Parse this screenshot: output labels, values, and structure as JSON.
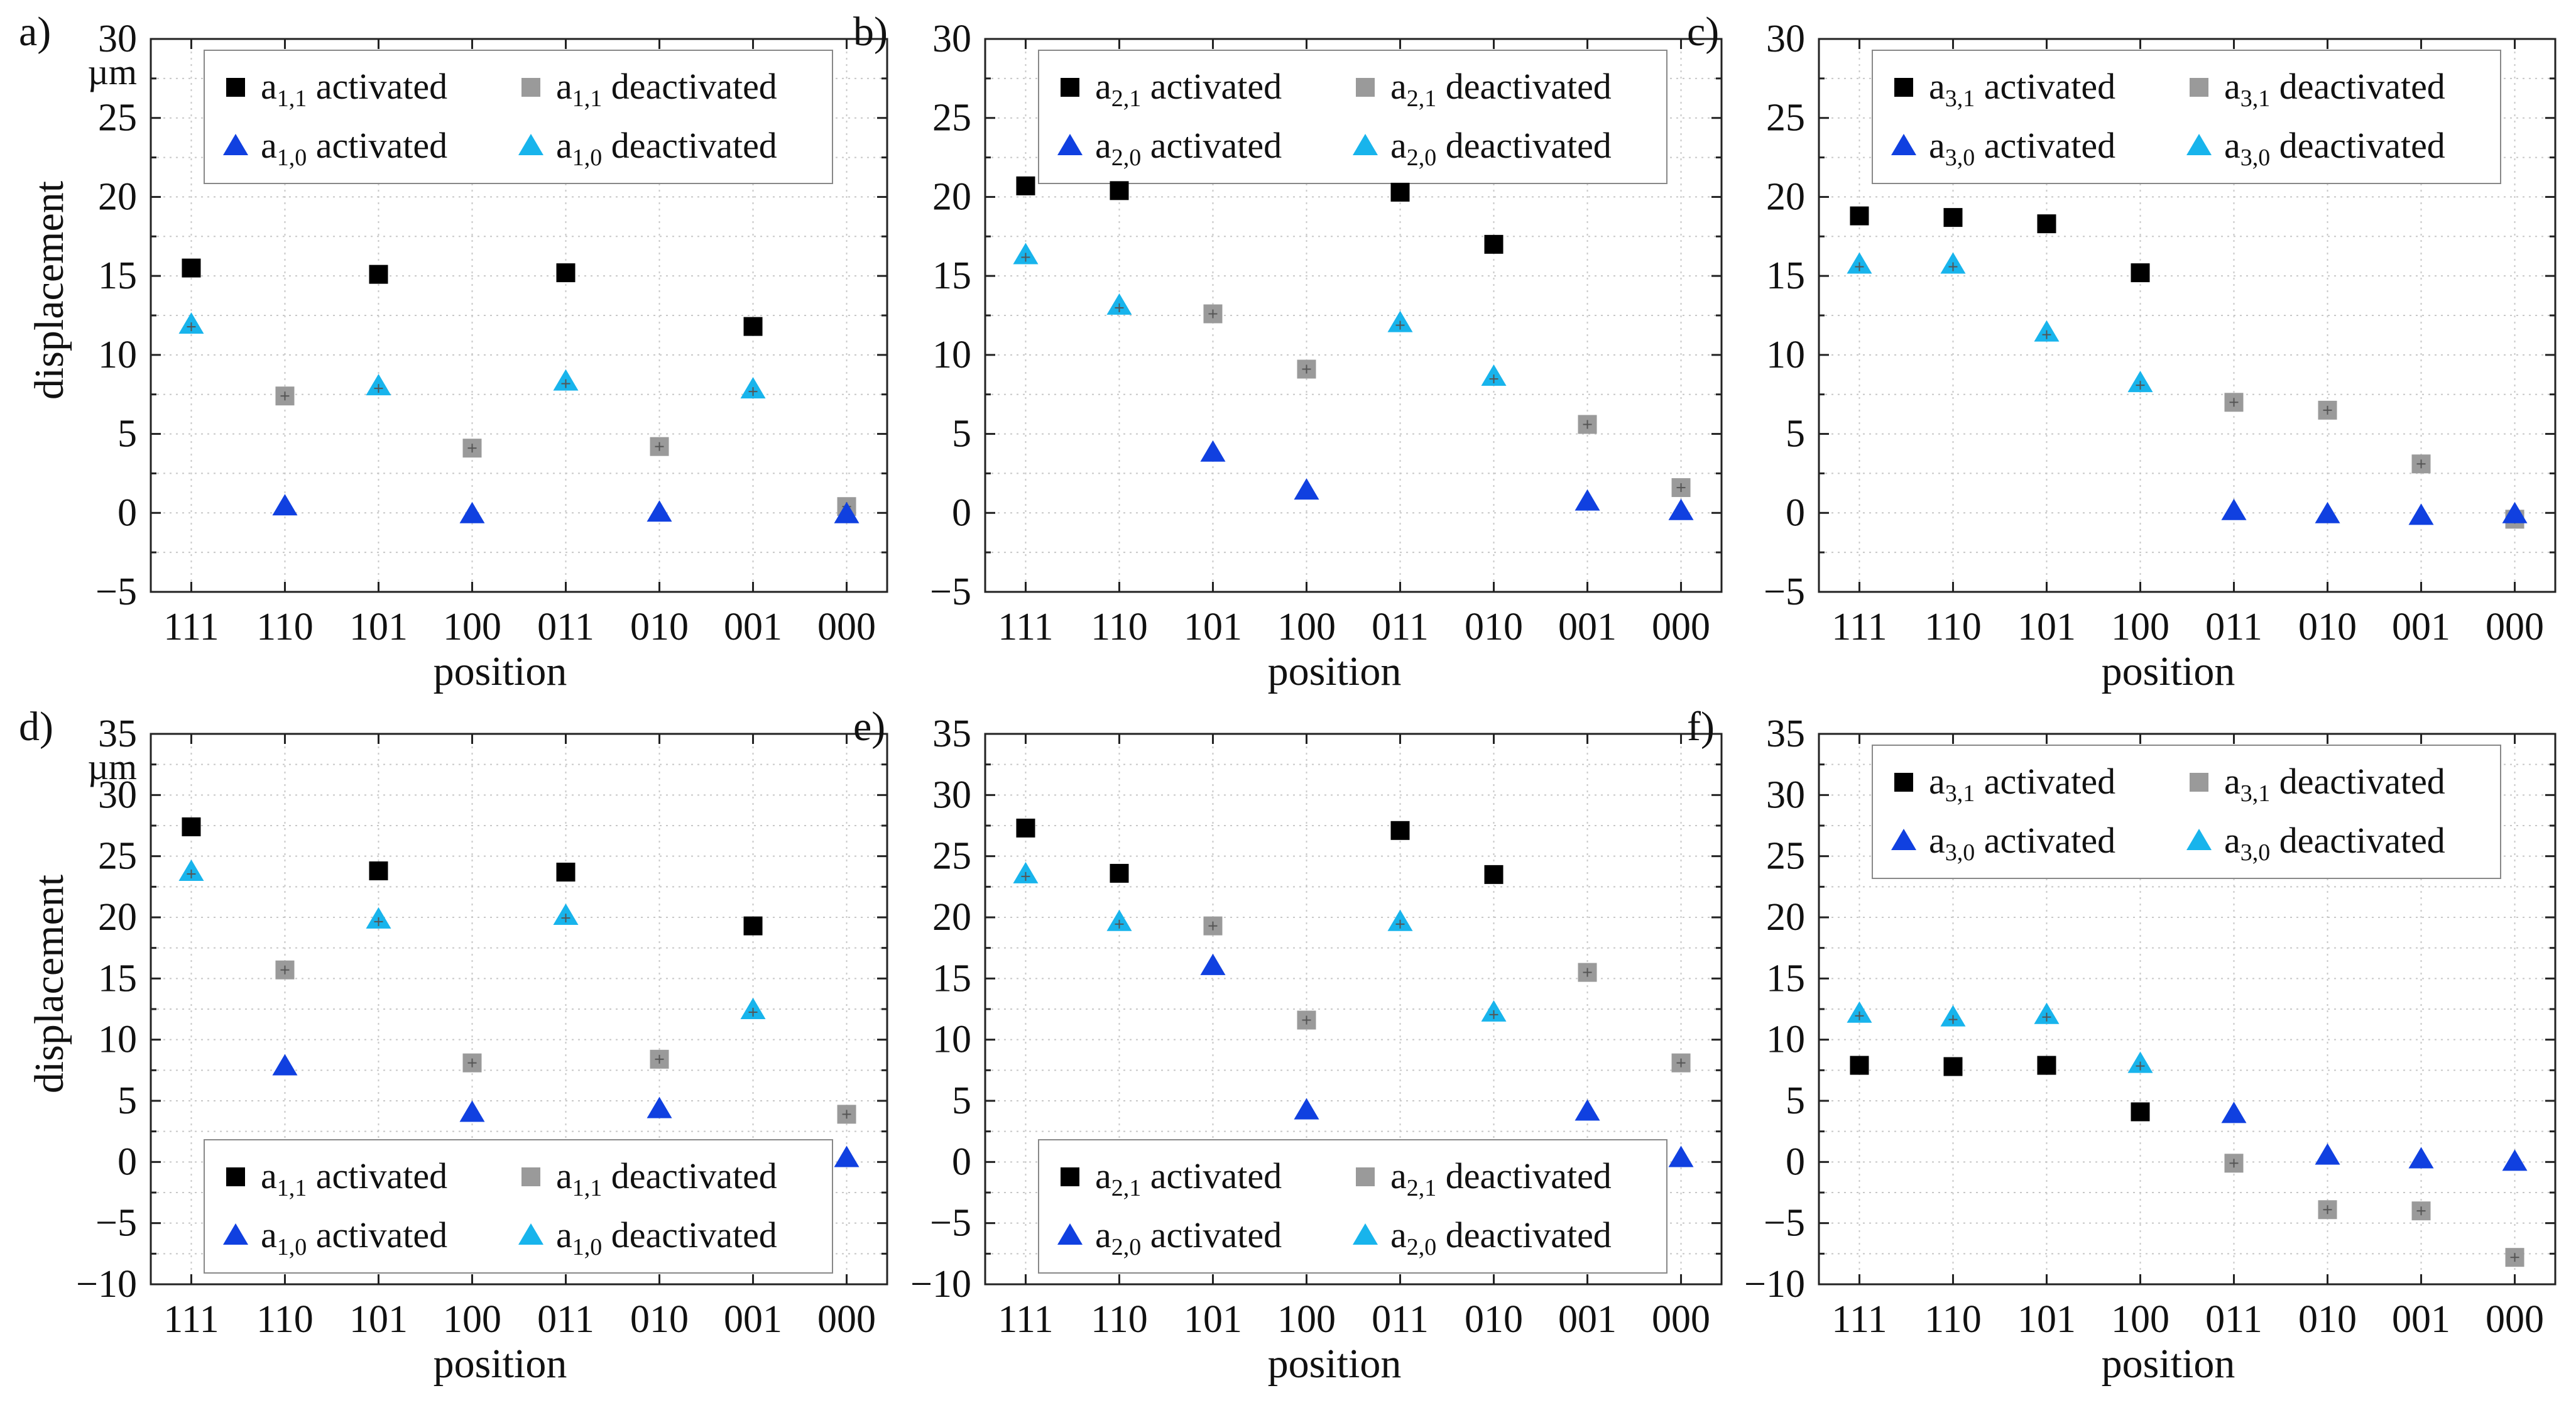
{
  "figure": {
    "x_label": "position",
    "y_label": "displacement",
    "unit": "µm",
    "categories": [
      "111",
      "110",
      "101",
      "100",
      "011",
      "010",
      "001",
      "000"
    ],
    "colors": {
      "activated_square": "#000000",
      "deactivated_square": "#9a9a9a",
      "activated_triangle": "#1040e0",
      "deactivated_triangle": "#18b4ec"
    }
  },
  "chart_data": [
    {
      "type": "scatter",
      "panel_label": "a)",
      "ylim": [
        -5,
        30
      ],
      "yticks": [
        -5,
        0,
        5,
        10,
        15,
        20,
        25,
        30
      ],
      "show_unit": true,
      "show_ylabel": true,
      "legend_position": "top",
      "series": [
        {
          "name": "a1,1 activated",
          "base": "a",
          "sub": "1,1",
          "state": "activated",
          "marker": "square",
          "color": "#000000",
          "values": [
            15.5,
            null,
            15.1,
            null,
            15.2,
            null,
            11.8,
            null
          ]
        },
        {
          "name": "a1,1 deactivated",
          "base": "a",
          "sub": "1,1",
          "state": "deactivated",
          "marker": "square",
          "color": "#9a9a9a",
          "values": [
            null,
            7.4,
            null,
            4.1,
            null,
            4.2,
            null,
            0.4
          ]
        },
        {
          "name": "a1,0 activated",
          "base": "a",
          "sub": "1,0",
          "state": "activated",
          "marker": "triangle",
          "color": "#1040e0",
          "values": [
            null,
            0.4,
            null,
            -0.1,
            null,
            0.0,
            null,
            -0.1
          ]
        },
        {
          "name": "a1,0 deactivated",
          "base": "a",
          "sub": "1,0",
          "state": "deactivated",
          "marker": "triangle",
          "color": "#18b4ec",
          "values": [
            11.9,
            null,
            8.0,
            null,
            8.3,
            null,
            7.8,
            null
          ]
        }
      ]
    },
    {
      "type": "scatter",
      "panel_label": "b)",
      "ylim": [
        -5,
        30
      ],
      "yticks": [
        -5,
        0,
        5,
        10,
        15,
        20,
        25,
        30
      ],
      "show_unit": false,
      "show_ylabel": false,
      "legend_position": "top",
      "series": [
        {
          "name": "a2,1 activated",
          "base": "a",
          "sub": "2,1",
          "state": "activated",
          "marker": "square",
          "color": "#000000",
          "values": [
            20.7,
            20.4,
            null,
            null,
            20.3,
            17.0,
            null,
            null
          ]
        },
        {
          "name": "a2,1 deactivated",
          "base": "a",
          "sub": "2,1",
          "state": "deactivated",
          "marker": "square",
          "color": "#9a9a9a",
          "values": [
            null,
            null,
            12.6,
            9.1,
            null,
            null,
            5.6,
            1.6
          ]
        },
        {
          "name": "a2,0 activated",
          "base": "a",
          "sub": "2,0",
          "state": "activated",
          "marker": "triangle",
          "color": "#1040e0",
          "values": [
            null,
            null,
            3.8,
            1.4,
            null,
            null,
            0.7,
            0.1
          ]
        },
        {
          "name": "a2,0 deactivated",
          "base": "a",
          "sub": "2,0",
          "state": "deactivated",
          "marker": "triangle",
          "color": "#18b4ec",
          "values": [
            16.3,
            13.1,
            null,
            null,
            12.0,
            8.6,
            null,
            null
          ]
        }
      ]
    },
    {
      "type": "scatter",
      "panel_label": "c)",
      "ylim": [
        -5,
        30
      ],
      "yticks": [
        -5,
        0,
        5,
        10,
        15,
        20,
        25,
        30
      ],
      "show_unit": false,
      "show_ylabel": false,
      "legend_position": "top",
      "series": [
        {
          "name": "a3,1 activated",
          "base": "a",
          "sub": "3,1",
          "state": "activated",
          "marker": "square",
          "color": "#000000",
          "values": [
            18.8,
            18.7,
            18.3,
            15.2,
            null,
            null,
            null,
            null
          ]
        },
        {
          "name": "a3,1 deactivated",
          "base": "a",
          "sub": "3,1",
          "state": "deactivated",
          "marker": "square",
          "color": "#9a9a9a",
          "values": [
            null,
            null,
            null,
            null,
            7.0,
            6.5,
            3.1,
            -0.4
          ]
        },
        {
          "name": "a3,0 activated",
          "base": "a",
          "sub": "3,0",
          "state": "activated",
          "marker": "triangle",
          "color": "#1040e0",
          "values": [
            null,
            null,
            null,
            null,
            0.1,
            -0.1,
            -0.2,
            -0.1
          ]
        },
        {
          "name": "a3,0 deactivated",
          "base": "a",
          "sub": "3,0",
          "state": "deactivated",
          "marker": "triangle",
          "color": "#18b4ec",
          "values": [
            15.7,
            15.7,
            11.4,
            8.2,
            null,
            null,
            null,
            null
          ]
        }
      ]
    },
    {
      "type": "scatter",
      "panel_label": "d)",
      "ylim": [
        -10,
        35
      ],
      "yticks": [
        -10,
        -5,
        0,
        5,
        10,
        15,
        20,
        25,
        30,
        35
      ],
      "show_unit": true,
      "show_ylabel": true,
      "legend_position": "bottom",
      "series": [
        {
          "name": "a1,1 activated",
          "base": "a",
          "sub": "1,1",
          "state": "activated",
          "marker": "square",
          "color": "#000000",
          "values": [
            27.4,
            null,
            23.8,
            null,
            23.7,
            null,
            19.3,
            null
          ]
        },
        {
          "name": "a1,1 deactivated",
          "base": "a",
          "sub": "1,1",
          "state": "deactivated",
          "marker": "square",
          "color": "#9a9a9a",
          "values": [
            null,
            15.7,
            null,
            8.1,
            null,
            8.4,
            null,
            3.9
          ]
        },
        {
          "name": "a1,0 activated",
          "base": "a",
          "sub": "1,0",
          "state": "activated",
          "marker": "triangle",
          "color": "#1040e0",
          "values": [
            null,
            7.8,
            null,
            4.0,
            null,
            4.3,
            null,
            0.3
          ]
        },
        {
          "name": "a1,0 deactivated",
          "base": "a",
          "sub": "1,0",
          "state": "deactivated",
          "marker": "triangle",
          "color": "#18b4ec",
          "values": [
            23.7,
            null,
            19.8,
            null,
            20.1,
            null,
            12.4,
            null
          ]
        }
      ]
    },
    {
      "type": "scatter",
      "panel_label": "e)",
      "ylim": [
        -10,
        35
      ],
      "yticks": [
        -10,
        -5,
        0,
        5,
        10,
        15,
        20,
        25,
        30,
        35
      ],
      "show_unit": false,
      "show_ylabel": false,
      "legend_position": "bottom",
      "series": [
        {
          "name": "a2,1 activated",
          "base": "a",
          "sub": "2,1",
          "state": "activated",
          "marker": "square",
          "color": "#000000",
          "values": [
            27.3,
            23.6,
            null,
            null,
            27.1,
            23.5,
            null,
            null
          ]
        },
        {
          "name": "a2,1 deactivated",
          "base": "a",
          "sub": "2,1",
          "state": "deactivated",
          "marker": "square",
          "color": "#9a9a9a",
          "values": [
            null,
            null,
            19.3,
            11.6,
            null,
            null,
            15.5,
            8.1
          ]
        },
        {
          "name": "a2,0 activated",
          "base": "a",
          "sub": "2,0",
          "state": "activated",
          "marker": "triangle",
          "color": "#1040e0",
          "values": [
            null,
            null,
            16.0,
            4.2,
            null,
            null,
            4.1,
            0.3
          ]
        },
        {
          "name": "a2,0 deactivated",
          "base": "a",
          "sub": "2,0",
          "state": "deactivated",
          "marker": "triangle",
          "color": "#18b4ec",
          "values": [
            23.5,
            19.6,
            null,
            null,
            19.6,
            12.2,
            null,
            null
          ]
        }
      ]
    },
    {
      "type": "scatter",
      "panel_label": "f)",
      "ylim": [
        -10,
        35
      ],
      "yticks": [
        -10,
        -5,
        0,
        5,
        10,
        15,
        20,
        25,
        30,
        35
      ],
      "show_unit": false,
      "show_ylabel": false,
      "legend_position": "top",
      "series": [
        {
          "name": "a3,1 activated",
          "base": "a",
          "sub": "3,1",
          "state": "activated",
          "marker": "square",
          "color": "#000000",
          "values": [
            7.9,
            7.8,
            7.9,
            4.1,
            null,
            null,
            null,
            null
          ]
        },
        {
          "name": "a3,1 deactivated",
          "base": "a",
          "sub": "3,1",
          "state": "deactivated",
          "marker": "square",
          "color": "#9a9a9a",
          "values": [
            null,
            null,
            null,
            null,
            -0.1,
            -3.9,
            -4.0,
            -7.8
          ]
        },
        {
          "name": "a3,0 activated",
          "base": "a",
          "sub": "3,0",
          "state": "activated",
          "marker": "triangle",
          "color": "#1040e0",
          "values": [
            null,
            null,
            null,
            null,
            3.9,
            0.5,
            0.2,
            0.0
          ]
        },
        {
          "name": "a3,0 deactivated",
          "base": "a",
          "sub": "3,0",
          "state": "deactivated",
          "marker": "triangle",
          "color": "#18b4ec",
          "values": [
            12.1,
            11.8,
            12.0,
            8.0,
            null,
            null,
            null,
            null
          ]
        }
      ]
    }
  ]
}
